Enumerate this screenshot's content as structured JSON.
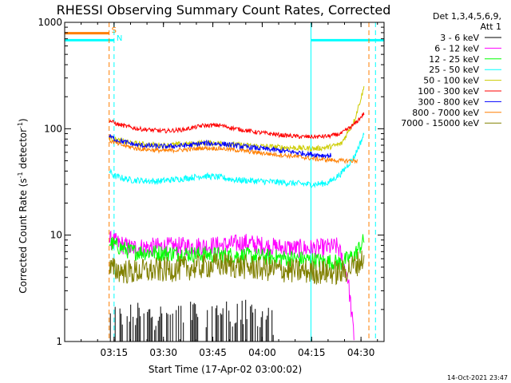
{
  "chart_data": {
    "type": "line",
    "title": "RHESSI Observing Summary Count Rates, Corrected",
    "xlabel": "Start Time (17-Apr-02 03:00:02)",
    "ylabel_main": "Corrected Count Rate (s",
    "ylabel_sup1": "-1",
    "ylabel_mid": " detector",
    "ylabel_sup2": "-1",
    "ylabel_end": ")",
    "yscale": "log",
    "ylim": [
      1,
      1000
    ],
    "xlim_minutes": [
      0,
      97
    ],
    "x_unit": "minutes after 03:00:02",
    "x_ticks": [
      {
        "minutes": 15,
        "label": "03:15"
      },
      {
        "minutes": 30,
        "label": "03:30"
      },
      {
        "minutes": 45,
        "label": "03:45"
      },
      {
        "minutes": 60,
        "label": "04:00"
      },
      {
        "minutes": 75,
        "label": "04:15"
      },
      {
        "minutes": 90,
        "label": "04:30"
      }
    ],
    "y_ticks": [
      {
        "value": 1,
        "label": "1"
      },
      {
        "value": 10,
        "label": "10"
      },
      {
        "value": 100,
        "label": "100"
      },
      {
        "value": 1000,
        "label": "1000"
      }
    ],
    "legend_header": [
      "Det 1,3,4,5,6,9,",
      "Att 1"
    ],
    "series": [
      {
        "name": "3 - 6 keV",
        "color": "#000000",
        "x": [
          13.5,
          22,
          32,
          40,
          48,
          56,
          63,
          66,
          72
        ],
        "y": [
          1.7,
          1.8,
          1.8,
          1.9,
          2.0,
          1.9,
          1.6,
          1.5,
          1.0
        ]
      },
      {
        "name": "6 - 12 keV",
        "color": "#ff00ff",
        "x": [
          13.5,
          20,
          30,
          40,
          48,
          55,
          62,
          70,
          76,
          79,
          83,
          86,
          88
        ],
        "y": [
          9.0,
          7.6,
          7.8,
          7.9,
          8.0,
          8.5,
          7.8,
          7.5,
          7.5,
          7.6,
          7.8,
          4.0,
          1.0
        ]
      },
      {
        "name": "12 - 25 keV",
        "color": "#00ff00",
        "x": [
          13.5,
          20,
          30,
          40,
          48,
          55,
          62,
          70,
          76,
          80,
          84,
          88,
          91
        ],
        "y": [
          8.5,
          7.0,
          6.8,
          6.6,
          6.5,
          6.4,
          6.2,
          6.0,
          5.8,
          5.6,
          5.5,
          6.5,
          9.0
        ]
      },
      {
        "name": "25 - 50 keV",
        "color": "#00ffff",
        "x": [
          13.5,
          15,
          20,
          28,
          36,
          42,
          47,
          52,
          60,
          68,
          74,
          76,
          80,
          84,
          88,
          91
        ],
        "y": [
          40,
          36,
          33,
          32,
          34,
          36,
          35,
          33,
          32,
          31,
          30,
          30,
          31,
          38,
          55,
          90
        ]
      },
      {
        "name": "50 - 100 keV",
        "color": "#cccc00",
        "x": [
          13.5,
          16,
          22,
          30,
          38,
          42,
          48,
          54,
          62,
          70,
          76,
          80,
          84,
          88,
          91
        ],
        "y": [
          83,
          78,
          72,
          70,
          72,
          74,
          73,
          70,
          68,
          66,
          65,
          67,
          72,
          120,
          250
        ]
      },
      {
        "name": "100 - 300 keV",
        "color": "#ff0000",
        "x": [
          13.5,
          16,
          22,
          30,
          36,
          42,
          47,
          52,
          58,
          66,
          72,
          76,
          80,
          84,
          88,
          91
        ],
        "y": [
          120,
          110,
          100,
          95,
          98,
          107,
          108,
          100,
          93,
          87,
          84,
          84,
          85,
          90,
          110,
          140
        ]
      },
      {
        "name": "300 - 800 keV",
        "color": "#0000ff",
        "x": [
          13.5,
          16,
          22,
          30,
          38,
          42,
          48,
          54,
          62,
          70,
          76,
          79,
          81
        ],
        "y": [
          85,
          78,
          70,
          68,
          70,
          73,
          72,
          68,
          64,
          60,
          57,
          56,
          56
        ]
      },
      {
        "name": "800 - 7000 keV",
        "color": "#ff7f00",
        "x": [
          13.5,
          16,
          22,
          30,
          38,
          42,
          48,
          54,
          62,
          70,
          76,
          80,
          84,
          89
        ],
        "y": [
          78,
          72,
          65,
          62,
          64,
          66,
          65,
          62,
          58,
          55,
          52,
          51,
          50,
          50
        ]
      },
      {
        "name": "7000 - 15000 keV",
        "color": "#808000",
        "x": [
          13.5,
          20,
          30,
          40,
          48,
          55,
          62,
          70,
          76,
          80,
          84,
          88,
          91
        ],
        "y": [
          4.8,
          4.5,
          4.7,
          5.0,
          5.3,
          5.0,
          4.8,
          4.6,
          4.5,
          4.5,
          4.4,
          5.2,
          6.0
        ]
      }
    ],
    "state_bars": [
      {
        "name": "saa-flag",
        "color": "#ff7f00",
        "x_start": 0,
        "x_end": 13.5,
        "value": 790
      },
      {
        "name": "night-flag",
        "color": "#00ffff",
        "x_start": 0,
        "x_end": 15,
        "value": 680
      },
      {
        "name": "night-flag-2",
        "color": "#00ffff",
        "x_start": 74.8,
        "x_end": 97,
        "value": 680
      }
    ],
    "markers": [
      {
        "name": "saa-end",
        "label": "S",
        "color": "#ff7f00",
        "minutes": 13.5,
        "style": "dashed"
      },
      {
        "name": "night-end",
        "label": "N",
        "color": "#00ffff",
        "minutes": 15,
        "style": "dashed"
      },
      {
        "name": "night-start",
        "label": "",
        "color": "#00ffff",
        "minutes": 74.8,
        "style": "solid"
      },
      {
        "name": "saa-start",
        "label": "",
        "color": "#ff7f00",
        "minutes": 92.4,
        "style": "dashed"
      },
      {
        "name": "attenuator-change",
        "label": "",
        "color": "#00ffff",
        "minutes": 94.4,
        "style": "dashed"
      }
    ],
    "timestamp": "14-Oct-2021 23:47"
  }
}
